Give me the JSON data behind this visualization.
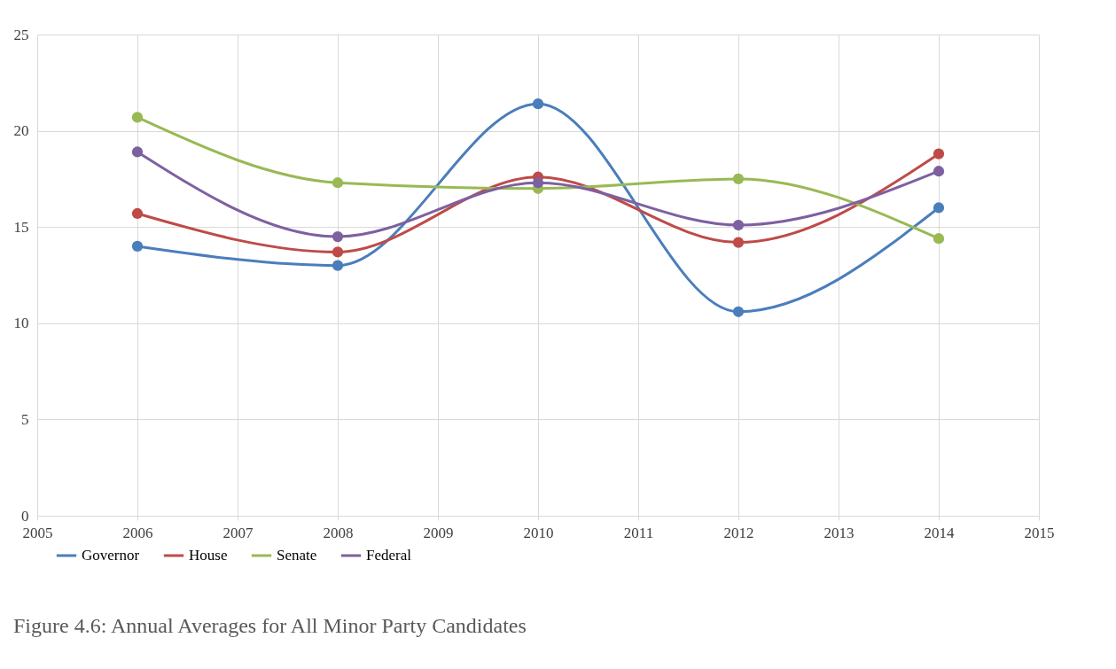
{
  "chart_data": {
    "type": "line",
    "title": "Figure 4.6: Annual Averages for All Minor Party Candidates",
    "x": [
      2006,
      2008,
      2010,
      2012,
      2014
    ],
    "series": [
      {
        "name": "Governor",
        "color": "#4a7ebb",
        "values": [
          14.0,
          13.0,
          21.4,
          10.6,
          16.0
        ]
      },
      {
        "name": "House",
        "color": "#be4b48",
        "values": [
          15.7,
          13.7,
          17.6,
          14.2,
          18.8
        ]
      },
      {
        "name": "Senate",
        "color": "#98b954",
        "values": [
          20.7,
          17.3,
          17.0,
          17.5,
          14.4
        ]
      },
      {
        "name": "Federal",
        "color": "#7d60a0",
        "values": [
          18.9,
          14.5,
          17.3,
          15.1,
          17.9
        ]
      }
    ],
    "xlim": [
      2005,
      2015
    ],
    "xticks": [
      2005,
      2006,
      2007,
      2008,
      2009,
      2010,
      2011,
      2012,
      2013,
      2014,
      2015
    ],
    "ylim": [
      0,
      25
    ],
    "yticks": [
      0,
      5,
      10,
      15,
      20,
      25
    ],
    "grid": true,
    "legend": "bottom left",
    "marker": "circle",
    "line_style": "solid"
  }
}
